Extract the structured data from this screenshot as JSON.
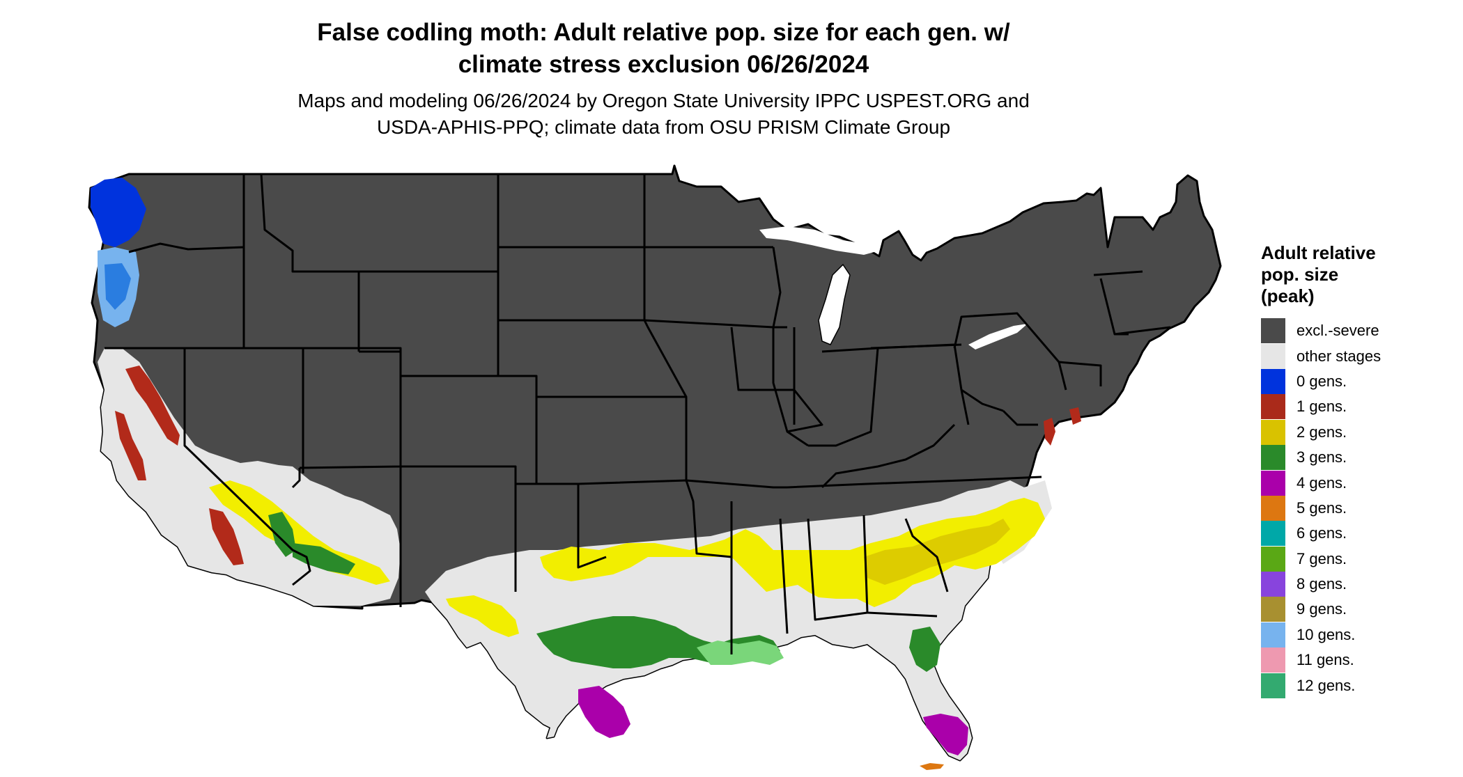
{
  "title": {
    "line1": "False codling moth: Adult relative pop. size for each gen. w/",
    "line2": "climate stress exclusion 06/26/2024"
  },
  "subtitle": {
    "line1": "Maps and modeling 06/26/2024 by Oregon State University IPPC USPEST.ORG and",
    "line2": "USDA-APHIS-PPQ; climate data from OSU PRISM Climate Group"
  },
  "map": {
    "region": "conterminous United States",
    "colors": {
      "excl_severe": "#4a4a4a",
      "other_stages": "#e6e6e6",
      "gen0": "#0033dd",
      "gen1": "#b22a1a",
      "gen2": "#ddcc00",
      "gen2_bright": "#f2ee00",
      "gen3": "#2a8a2a",
      "gen3_light": "#7ad67a",
      "gen4": "#aa00aa",
      "gen5": "#dd7711",
      "gen10": "#77b3ee",
      "boundary": "#000000"
    }
  },
  "legend": {
    "title_lines": [
      "Adult relative",
      "pop. size",
      "(peak)"
    ],
    "items": [
      {
        "label": "excl.-severe",
        "color": "#4a4a4a"
      },
      {
        "label": "other stages",
        "color": "#e6e6e6"
      },
      {
        "label": "0 gens.",
        "color": "#0033dd"
      },
      {
        "label": "1 gens.",
        "color": "#aa2a1a"
      },
      {
        "label": "2 gens.",
        "color": "#d9c200"
      },
      {
        "label": "3 gens.",
        "color": "#2a8a2a"
      },
      {
        "label": "4 gens.",
        "color": "#aa00aa"
      },
      {
        "label": "5 gens.",
        "color": "#dd7711"
      },
      {
        "label": "6 gens.",
        "color": "#00a8a8"
      },
      {
        "label": "7 gens.",
        "color": "#5aa815"
      },
      {
        "label": "8 gens.",
        "color": "#8844dd"
      },
      {
        "label": "9 gens.",
        "color": "#a89030"
      },
      {
        "label": "10 gens.",
        "color": "#77b3ee"
      },
      {
        "label": "11 gens.",
        "color": "#ee99b0"
      },
      {
        "label": "12 gens.",
        "color": "#33aa70"
      }
    ]
  }
}
